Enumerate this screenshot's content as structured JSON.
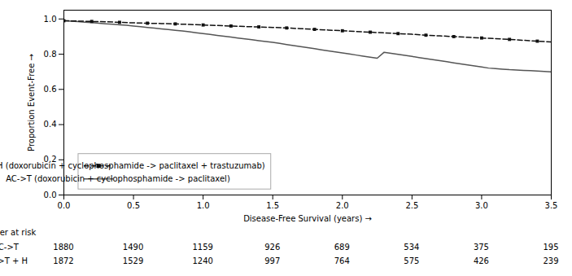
{
  "chart_data": {
    "type": "line",
    "xlabel": "Disease-Free Survival (years)",
    "ylabel": "Proportion Event-Free",
    "xlim": [
      0.0,
      3.5
    ],
    "ylim": [
      0.0,
      1.05
    ],
    "xticks": [
      {
        "value": 0.0,
        "label": "0.0"
      },
      0.5,
      {
        "value": 1.0,
        "label": "1.0"
      },
      1.5,
      {
        "value": 2.0,
        "label": "2.0"
      },
      2.5,
      {
        "value": 3.0,
        "label": "3.0"
      },
      3.5
    ],
    "yticks": [
      {
        "value": 0.0,
        "label": "0.0"
      },
      0.2,
      0.4,
      0.6,
      0.8,
      {
        "value": 1.0,
        "label": "1.0"
      }
    ],
    "grid": false,
    "legend": "lower left",
    "series": [
      {
        "name": "AC->TH (doxorubicin + cyclophosphamide -> paclitaxel + trastuzumab)",
        "color": "#111111",
        "line_style": "dashed",
        "marker": "square",
        "x": [
          0.0,
          0.1,
          0.2,
          0.3,
          0.4,
          0.5,
          0.6,
          0.7,
          0.8,
          0.9,
          1.0,
          1.1,
          1.2,
          1.3,
          1.4,
          1.5,
          1.6,
          1.7,
          1.8,
          1.9,
          2.0,
          2.1,
          2.2,
          2.3,
          2.4,
          2.5,
          2.6,
          2.7,
          2.8,
          2.9,
          3.0,
          3.1,
          3.2,
          3.3,
          3.4,
          3.5
        ],
        "values": [
          0.99,
          0.988,
          0.986,
          0.984,
          0.981,
          0.978,
          0.976,
          0.974,
          0.972,
          0.969,
          0.966,
          0.963,
          0.96,
          0.957,
          0.955,
          0.952,
          0.949,
          0.945,
          0.941,
          0.937,
          0.933,
          0.929,
          0.925,
          0.921,
          0.917,
          0.913,
          0.908,
          0.904,
          0.9,
          0.896,
          0.892,
          0.888,
          0.884,
          0.879,
          0.874,
          0.87
        ]
      },
      {
        "name": "AC->T (doxorubicin + cyclophosphamide -> paclitaxel)",
        "color": "#555555",
        "line_style": "solid",
        "x": [
          0.0,
          0.05,
          0.1,
          0.15,
          0.2,
          0.25,
          0.3,
          0.35,
          0.4,
          0.45,
          0.5,
          0.55,
          0.6,
          0.65,
          0.7,
          0.75,
          0.8,
          0.85,
          0.9,
          0.95,
          1.0,
          1.05,
          1.1,
          1.15,
          1.2,
          1.25,
          1.3,
          1.35,
          1.4,
          1.45,
          1.5,
          1.55,
          1.6,
          1.65,
          1.7,
          1.75,
          1.8,
          1.85,
          1.9,
          1.95,
          2.0,
          2.05,
          2.1,
          2.15,
          2.2,
          2.25,
          2.3,
          2.35,
          2.4,
          2.45,
          2.5,
          2.55,
          2.6,
          2.65,
          2.7,
          2.75,
          2.8,
          2.85,
          2.9,
          2.95,
          3.0,
          3.05,
          3.1,
          3.15,
          3.2,
          3.25,
          3.3,
          3.35,
          3.4,
          3.45,
          3.5
        ],
        "values": [
          0.99,
          0.988,
          0.985,
          0.982,
          0.979,
          0.976,
          0.973,
          0.97,
          0.967,
          0.964,
          0.96,
          0.956,
          0.952,
          0.948,
          0.944,
          0.94,
          0.936,
          0.932,
          0.927,
          0.922,
          0.917,
          0.912,
          0.907,
          0.902,
          0.897,
          0.892,
          0.887,
          0.882,
          0.877,
          0.872,
          0.867,
          0.861,
          0.855,
          0.849,
          0.843,
          0.837,
          0.831,
          0.825,
          0.819,
          0.813,
          0.807,
          0.801,
          0.795,
          0.789,
          0.783,
          0.777,
          0.811,
          0.805,
          0.799,
          0.793,
          0.787,
          0.781,
          0.775,
          0.769,
          0.763,
          0.757,
          0.751,
          0.745,
          0.739,
          0.733,
          0.727,
          0.721,
          0.718,
          0.715,
          0.712,
          0.71,
          0.708,
          0.706,
          0.704,
          0.702,
          0.7
        ]
      }
    ],
    "risk_table": {
      "title": "Number at risk",
      "x": [
        0.0,
        0.5,
        1.0,
        1.5,
        2.0,
        2.5,
        3.0,
        3.5
      ],
      "rows": [
        {
          "name": "AC->T",
          "values": [
            1880,
            1490,
            1159,
            926,
            689,
            534,
            375,
            195
          ]
        },
        {
          "name": "AC->T + H",
          "values": [
            1872,
            1529,
            1240,
            997,
            764,
            575,
            426,
            239
          ]
        }
      ]
    }
  }
}
